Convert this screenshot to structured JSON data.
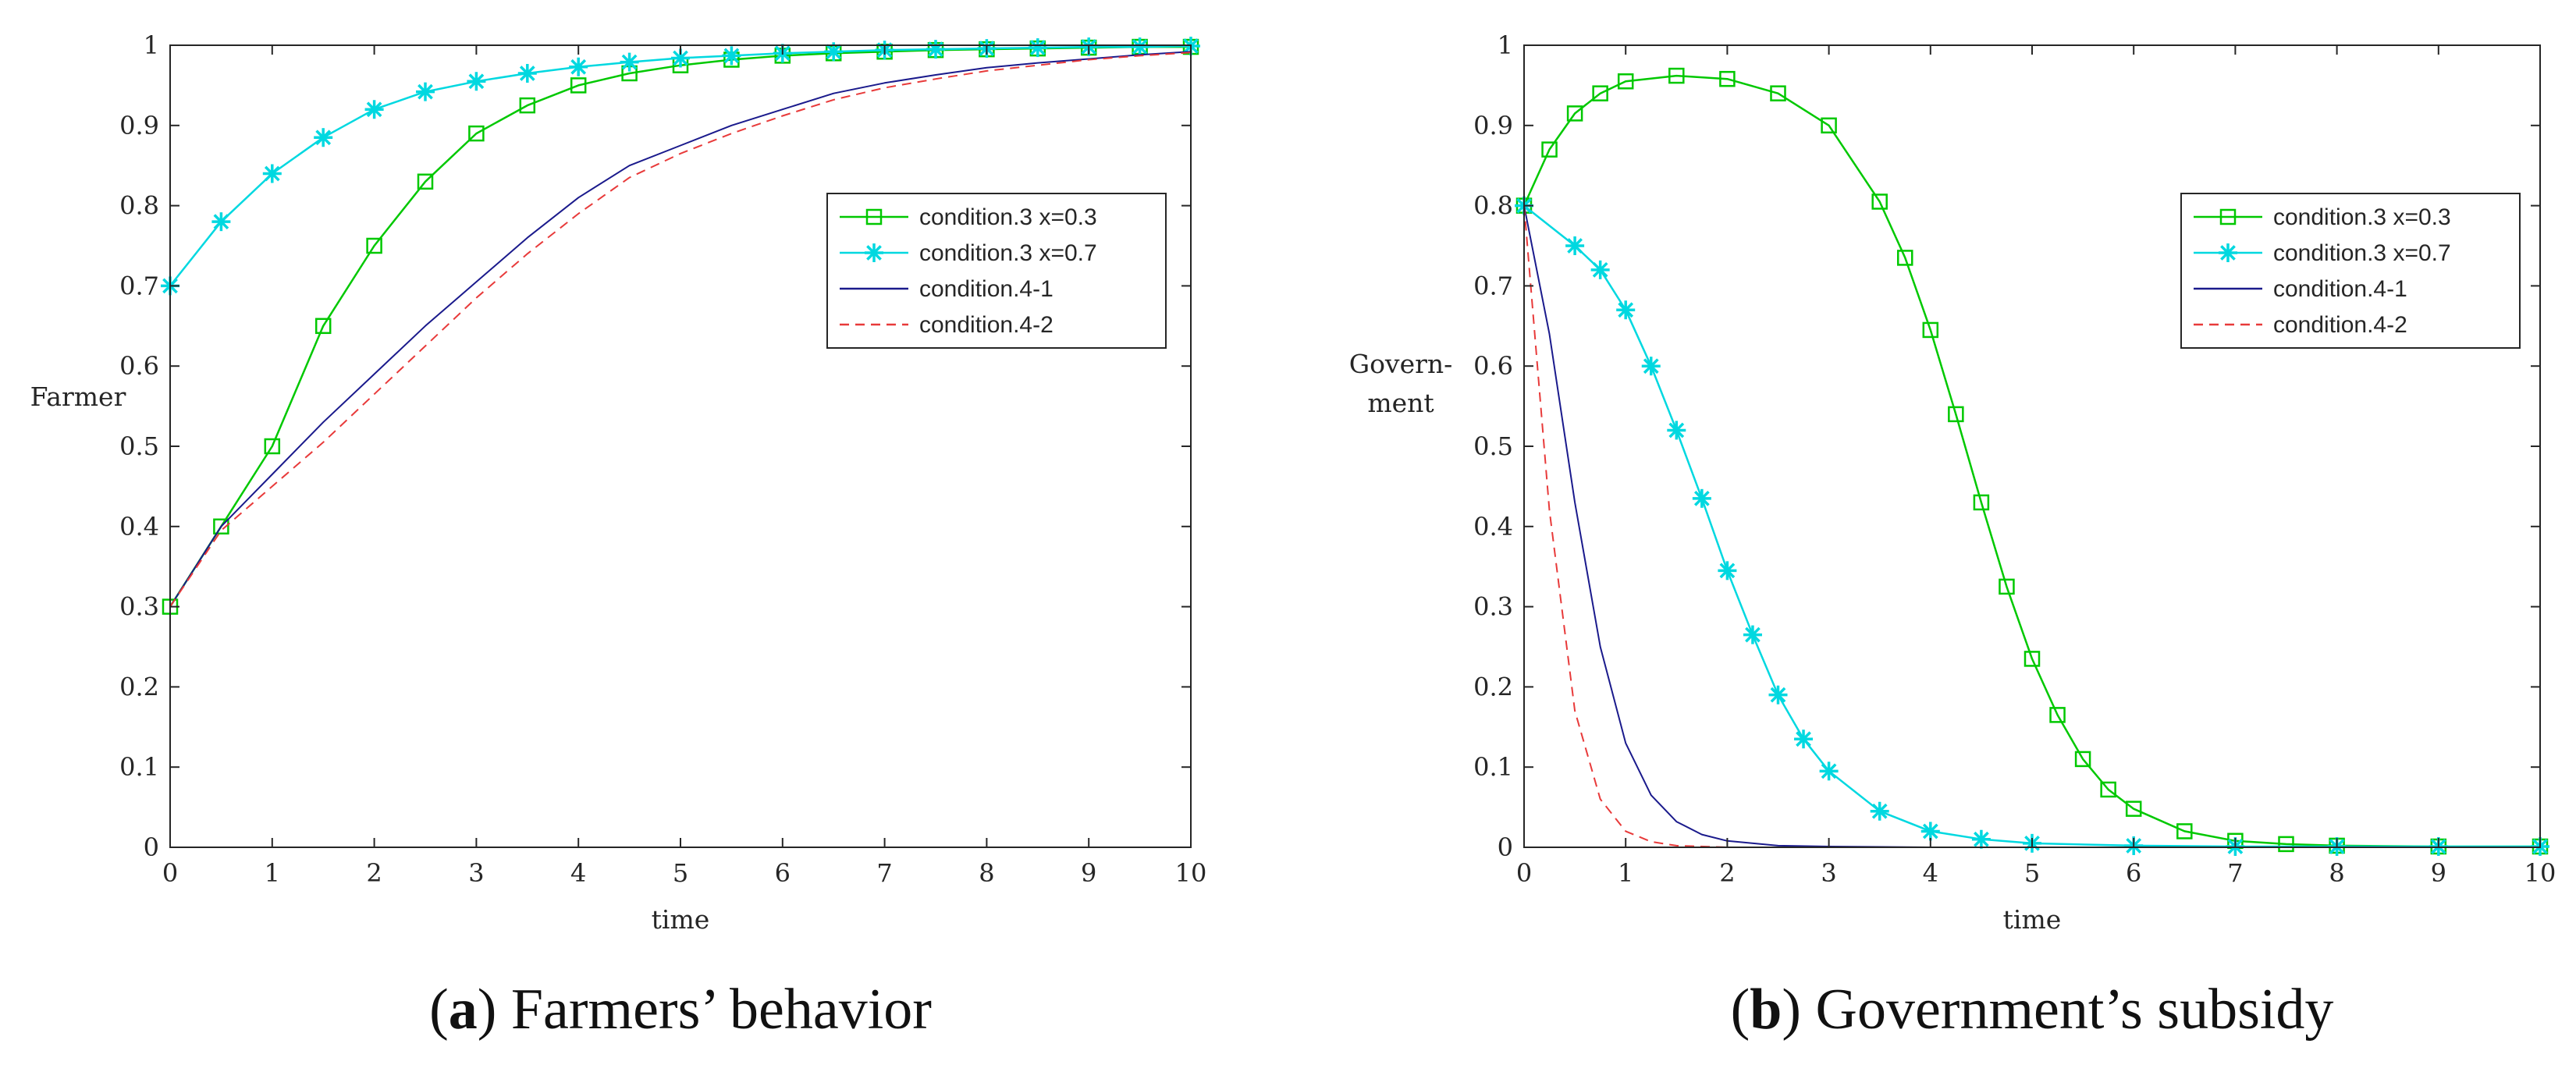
{
  "colors": {
    "cond3_x03": "#00c800",
    "cond3_x07": "#00d8e0",
    "cond4_1": "#1a1a8c",
    "cond4_2": "#e83a3a",
    "axis": "#262626"
  },
  "chart_data": [
    {
      "type": "line",
      "caption": {
        "prefix": "(",
        "letter": "a",
        "suffix": ") Farmers’ behavior"
      },
      "xlabel": "time",
      "ylabel": [
        "Farmer"
      ],
      "xlim": [
        0,
        10
      ],
      "ylim": [
        0,
        1
      ],
      "xticks": [
        "0",
        "1",
        "2",
        "3",
        "4",
        "5",
        "6",
        "7",
        "8",
        "9",
        "10"
      ],
      "yticks": [
        "0",
        "0.1",
        "0.2",
        "0.3",
        "0.4",
        "0.5",
        "0.6",
        "0.7",
        "0.8",
        "0.9",
        "1"
      ],
      "legend_position": "right-upper",
      "series": [
        {
          "name": "condition.3 x=0.3",
          "color_key": "cond3_x03",
          "style": "solid",
          "marker": "square",
          "x": [
            0,
            0.5,
            1,
            1.5,
            2,
            2.5,
            3,
            3.5,
            4,
            4.5,
            5,
            5.5,
            6,
            6.5,
            7,
            7.5,
            8,
            8.5,
            9,
            9.5,
            10
          ],
          "y": [
            0.3,
            0.4,
            0.5,
            0.65,
            0.75,
            0.83,
            0.89,
            0.925,
            0.95,
            0.965,
            0.975,
            0.982,
            0.987,
            0.99,
            0.992,
            0.994,
            0.995,
            0.996,
            0.997,
            0.998,
            0.998
          ]
        },
        {
          "name": "condition.3 x=0.7",
          "color_key": "cond3_x07",
          "style": "solid",
          "marker": "star",
          "x": [
            0,
            0.5,
            1,
            1.5,
            2,
            2.5,
            3,
            3.5,
            4,
            4.5,
            5,
            5.5,
            6,
            6.5,
            7,
            7.5,
            8,
            8.5,
            9,
            9.5,
            10
          ],
          "y": [
            0.7,
            0.78,
            0.84,
            0.885,
            0.92,
            0.942,
            0.955,
            0.965,
            0.973,
            0.979,
            0.984,
            0.987,
            0.99,
            0.992,
            0.994,
            0.995,
            0.996,
            0.997,
            0.998,
            0.998,
            0.999
          ]
        },
        {
          "name": "condition.4-1",
          "color_key": "cond4_1",
          "style": "solid",
          "marker": "none",
          "x": [
            0,
            0.5,
            1,
            1.5,
            2,
            2.5,
            3,
            3.5,
            4,
            4.5,
            5,
            5.5,
            6,
            6.5,
            7,
            7.5,
            8,
            8.5,
            9,
            9.5,
            10
          ],
          "y": [
            0.3,
            0.4,
            0.465,
            0.53,
            0.59,
            0.65,
            0.705,
            0.76,
            0.81,
            0.85,
            0.875,
            0.9,
            0.92,
            0.94,
            0.953,
            0.963,
            0.972,
            0.978,
            0.983,
            0.988,
            0.992
          ]
        },
        {
          "name": "condition.4-2",
          "color_key": "cond4_2",
          "style": "dashed",
          "marker": "none",
          "x": [
            0,
            0.5,
            1,
            1.5,
            2,
            2.5,
            3,
            3.5,
            4,
            4.5,
            5,
            5.5,
            6,
            6.5,
            7,
            7.5,
            8,
            8.5,
            9,
            9.5,
            10
          ],
          "y": [
            0.3,
            0.395,
            0.45,
            0.505,
            0.565,
            0.625,
            0.685,
            0.74,
            0.79,
            0.835,
            0.865,
            0.89,
            0.912,
            0.932,
            0.947,
            0.958,
            0.968,
            0.975,
            0.982,
            0.987,
            0.991
          ]
        }
      ]
    },
    {
      "type": "line",
      "caption": {
        "prefix": "(",
        "letter": "b",
        "suffix": ") Government’s subsidy"
      },
      "xlabel": "time",
      "ylabel": [
        "Govern-",
        "ment"
      ],
      "xlim": [
        0,
        10
      ],
      "ylim": [
        0,
        1
      ],
      "xticks": [
        "0",
        "1",
        "2",
        "3",
        "4",
        "5",
        "6",
        "7",
        "8",
        "9",
        "10"
      ],
      "yticks": [
        "0",
        "0.1",
        "0.2",
        "0.3",
        "0.4",
        "0.5",
        "0.6",
        "0.7",
        "0.8",
        "0.9",
        "1"
      ],
      "legend_position": "right-upper",
      "series": [
        {
          "name": "condition.3 x=0.3",
          "color_key": "cond3_x03",
          "style": "solid",
          "marker": "square",
          "x": [
            0,
            0.25,
            0.5,
            0.75,
            1,
            1.5,
            2,
            2.5,
            3,
            3.5,
            3.75,
            4,
            4.25,
            4.5,
            4.75,
            5,
            5.25,
            5.5,
            5.75,
            6,
            6.5,
            7,
            7.5,
            8,
            9,
            10
          ],
          "y": [
            0.8,
            0.87,
            0.915,
            0.94,
            0.955,
            0.962,
            0.958,
            0.94,
            0.9,
            0.805,
            0.735,
            0.645,
            0.54,
            0.43,
            0.325,
            0.235,
            0.165,
            0.11,
            0.072,
            0.048,
            0.02,
            0.008,
            0.004,
            0.002,
            0.001,
            0.001
          ]
        },
        {
          "name": "condition.3 x=0.7",
          "color_key": "cond3_x07",
          "style": "solid",
          "marker": "star",
          "x": [
            0,
            0.5,
            0.75,
            1,
            1.25,
            1.5,
            1.75,
            2,
            2.25,
            2.5,
            2.75,
            3,
            3.5,
            4,
            4.5,
            5,
            6,
            7,
            8,
            9,
            10
          ],
          "y": [
            0.8,
            0.75,
            0.72,
            0.67,
            0.6,
            0.52,
            0.435,
            0.345,
            0.265,
            0.19,
            0.135,
            0.095,
            0.045,
            0.02,
            0.01,
            0.005,
            0.002,
            0.001,
            0.001,
            0.001,
            0.001
          ]
        },
        {
          "name": "condition.4-1",
          "color_key": "cond4_1",
          "style": "solid",
          "marker": "none",
          "x": [
            0,
            0.25,
            0.5,
            0.75,
            1,
            1.25,
            1.5,
            1.75,
            2,
            2.5,
            3,
            4,
            5,
            6,
            7,
            8,
            9,
            10
          ],
          "y": [
            0.8,
            0.64,
            0.43,
            0.25,
            0.13,
            0.065,
            0.032,
            0.016,
            0.008,
            0.002,
            0.001,
            0,
            0,
            0,
            0,
            0,
            0,
            0
          ]
        },
        {
          "name": "condition.4-2",
          "color_key": "cond4_2",
          "style": "dashed",
          "marker": "none",
          "x": [
            0,
            0.25,
            0.5,
            0.75,
            1,
            1.25,
            1.5,
            2,
            3,
            4,
            5,
            6,
            7,
            8,
            9,
            10
          ],
          "y": [
            0.8,
            0.42,
            0.17,
            0.06,
            0.02,
            0.007,
            0.002,
            0,
            0,
            0,
            0,
            0,
            0,
            0,
            0,
            0
          ]
        }
      ]
    }
  ]
}
